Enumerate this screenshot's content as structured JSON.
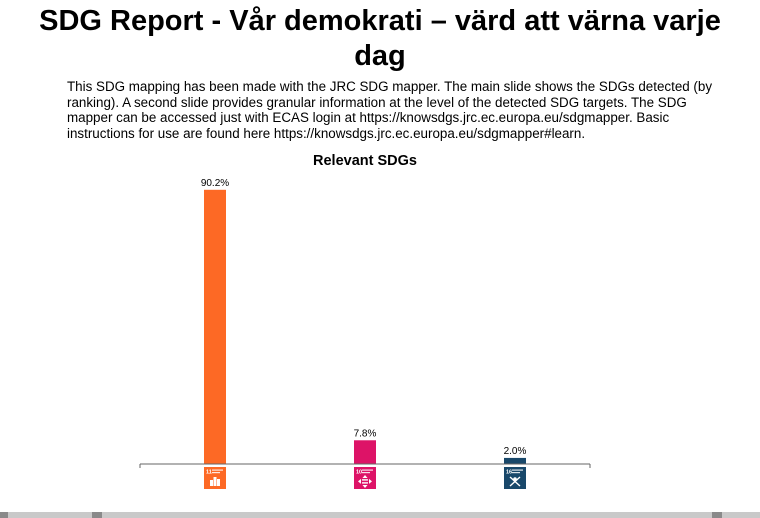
{
  "page": {
    "title": "SDG Report - Vår demokrati – värd att värna varje dag",
    "description": "This SDG mapping has been made with the JRC SDG mapper. The main slide shows the SDGs detected (by ranking). A second slide provides granular information at the level of the detected SDG targets. The SDG mapper can be accessed just with ECAS login at https://knowsdgs.jrc.ec.europa.eu/sdgmapper. Basic instructions for use are found here https://knowsdgs.jrc.ec.europa.eu/sdgmapper#learn."
  },
  "chart_data": {
    "type": "bar",
    "title": "Relevant SDGs",
    "xlabel": "",
    "ylabel": "",
    "ylim": [
      0,
      100
    ],
    "categories": [
      "SDG 11",
      "SDG 10",
      "SDG 16"
    ],
    "values": [
      90.2,
      7.8,
      2.0
    ],
    "data_labels": [
      "90.2%",
      "7.8%",
      "2.0%"
    ],
    "colors": [
      "#fd6925",
      "#dd1367",
      "#19486a"
    ],
    "icon_numbers": [
      "11",
      "10",
      "16"
    ],
    "icon_names": [
      "sdg-11-sustainable-cities-icon",
      "sdg-10-reduced-inequalities-icon",
      "sdg-16-peace-justice-icon"
    ]
  }
}
